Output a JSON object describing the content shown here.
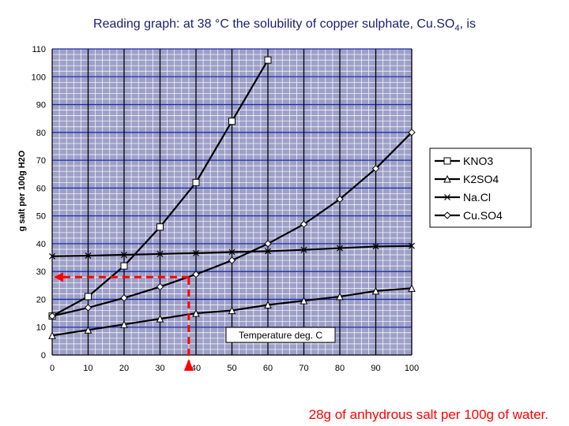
{
  "title": {
    "text": "Reading graph: at 38 °C the solubility of copper sulphate, Cu.SO",
    "subscript": "4",
    "suffix": ", is"
  },
  "answer_text": "28g of anhydrous salt per 100g of water.",
  "colors": {
    "plot_background": "#9ea0c8",
    "grid_minor": "#ffffff",
    "grid_major_blue": "#1a2ea6",
    "grid_major_black": "#000000",
    "series": "#000000",
    "reading_arrow": "#ff0000",
    "title": "#1a1f6e",
    "answer": "#ff0000"
  },
  "chart_data": {
    "type": "line",
    "ylabel": "g salt per 100g H2O",
    "xlabel": "Temperature deg. C",
    "xlim": [
      0,
      100
    ],
    "ylim": [
      0,
      110
    ],
    "x_ticks": [
      0,
      10,
      20,
      30,
      40,
      50,
      60,
      70,
      80,
      90,
      100
    ],
    "y_ticks": [
      0,
      10,
      20,
      30,
      40,
      50,
      60,
      70,
      80,
      90,
      100,
      110
    ],
    "grid": true,
    "legend_position": "right",
    "series": [
      {
        "name": "KNO3",
        "marker": "square",
        "points": [
          [
            0,
            14
          ],
          [
            10,
            21
          ],
          [
            20,
            32
          ],
          [
            30,
            46
          ],
          [
            40,
            62
          ],
          [
            50,
            84
          ],
          [
            60,
            106
          ]
        ]
      },
      {
        "name": "K2SO4",
        "marker": "triangle",
        "points": [
          [
            0,
            7
          ],
          [
            10,
            9
          ],
          [
            20,
            11
          ],
          [
            30,
            13
          ],
          [
            40,
            15
          ],
          [
            50,
            16
          ],
          [
            60,
            18
          ],
          [
            70,
            19.5
          ],
          [
            80,
            21
          ],
          [
            90,
            23
          ],
          [
            100,
            24
          ]
        ]
      },
      {
        "name": "Na.Cl",
        "marker": "x",
        "points": [
          [
            0,
            35.5
          ],
          [
            10,
            35.7
          ],
          [
            20,
            36
          ],
          [
            30,
            36.3
          ],
          [
            40,
            36.6
          ],
          [
            50,
            37
          ],
          [
            60,
            37.3
          ],
          [
            70,
            37.8
          ],
          [
            80,
            38.4
          ],
          [
            90,
            39
          ],
          [
            100,
            39.2
          ]
        ]
      },
      {
        "name": "Cu.SO4",
        "marker": "diamond",
        "points": [
          [
            0,
            14
          ],
          [
            10,
            17
          ],
          [
            20,
            20.5
          ],
          [
            30,
            24.5
          ],
          [
            40,
            29
          ],
          [
            50,
            34
          ],
          [
            60,
            40
          ],
          [
            70,
            47
          ],
          [
            80,
            56
          ],
          [
            90,
            67
          ],
          [
            100,
            80
          ]
        ]
      }
    ],
    "reading": {
      "x": 38,
      "y": 28
    }
  }
}
